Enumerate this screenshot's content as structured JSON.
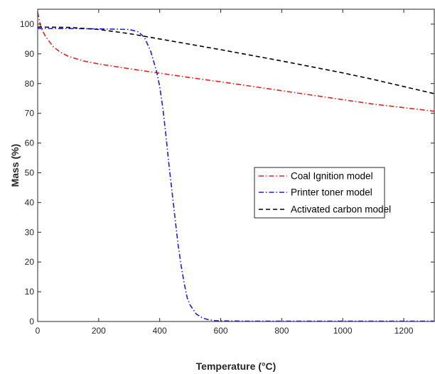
{
  "chart_data": {
    "type": "line",
    "title": "",
    "xlabel": "Temperature (°C)",
    "ylabel": "Mass (%)",
    "xlim": [
      0,
      1300
    ],
    "ylim": [
      0,
      105
    ],
    "xticks": [
      0,
      200,
      400,
      600,
      800,
      1000,
      1200
    ],
    "yticks": [
      0,
      10,
      20,
      30,
      40,
      50,
      60,
      70,
      80,
      90,
      100
    ],
    "grid": false,
    "legend_position": "center-right",
    "series": [
      {
        "name": "Coal Ignition model",
        "color": "#e8211d",
        "dash": "dash-dot",
        "points": [
          [
            0,
            104
          ],
          [
            10,
            99
          ],
          [
            25,
            96
          ],
          [
            50,
            92.5
          ],
          [
            75,
            90.5
          ],
          [
            100,
            89.2
          ],
          [
            150,
            87.6
          ],
          [
            200,
            86.6
          ],
          [
            300,
            85
          ],
          [
            400,
            83.5
          ],
          [
            500,
            82
          ],
          [
            600,
            80.6
          ],
          [
            700,
            79.1
          ],
          [
            800,
            77.6
          ],
          [
            900,
            76.1
          ],
          [
            1000,
            74.6
          ],
          [
            1100,
            73.1
          ],
          [
            1200,
            71.9
          ],
          [
            1300,
            70.7
          ]
        ]
      },
      {
        "name": "Printer toner model",
        "color": "#1a1aff",
        "dash": "dash-dot",
        "points": [
          [
            0,
            98.5
          ],
          [
            100,
            98.5
          ],
          [
            200,
            98.4
          ],
          [
            300,
            98.2
          ],
          [
            330,
            97.4
          ],
          [
            350,
            95.5
          ],
          [
            370,
            91
          ],
          [
            390,
            84
          ],
          [
            400,
            79
          ],
          [
            410,
            72
          ],
          [
            420,
            63
          ],
          [
            430,
            53
          ],
          [
            440,
            44
          ],
          [
            450,
            35
          ],
          [
            460,
            26
          ],
          [
            470,
            19
          ],
          [
            480,
            13
          ],
          [
            490,
            8
          ],
          [
            500,
            5.5
          ],
          [
            520,
            2.5
          ],
          [
            540,
            1.2
          ],
          [
            560,
            0.6
          ],
          [
            580,
            0.3
          ],
          [
            600,
            0.2
          ],
          [
            700,
            0.1
          ],
          [
            1300,
            0.1
          ]
        ]
      },
      {
        "name": "Activated carbon model",
        "color": "#000000",
        "dash": "dashed",
        "points": [
          [
            0,
            99
          ],
          [
            100,
            98.9
          ],
          [
            200,
            98.2
          ],
          [
            300,
            96.8
          ],
          [
            400,
            95
          ],
          [
            500,
            93.2
          ],
          [
            600,
            91.4
          ],
          [
            700,
            89.5
          ],
          [
            800,
            87.6
          ],
          [
            900,
            85.6
          ],
          [
            1000,
            83.6
          ],
          [
            1100,
            81.4
          ],
          [
            1200,
            79
          ],
          [
            1300,
            76.6
          ]
        ]
      }
    ]
  }
}
